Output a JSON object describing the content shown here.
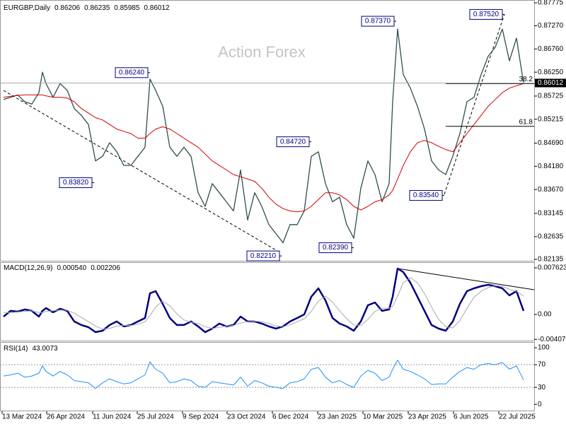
{
  "chart_data": [
    {
      "type": "line",
      "title": "EURGBP,Daily",
      "quote": [
        0.86206,
        0.86235,
        0.85985,
        0.86012
      ],
      "watermark": "Action Forex",
      "last_price": 0.86012,
      "x": [
        2.5,
        7.5,
        12.5,
        17.5,
        22.5,
        27.5,
        30,
        32.5,
        37.5,
        42.5,
        47.5,
        52.5,
        57.5,
        62.5,
        67.5,
        72.5,
        77.5,
        82.5,
        87.5,
        92.5,
        97.5,
        102.5,
        106,
        110,
        115,
        120,
        125,
        130,
        135,
        140,
        145,
        150,
        155,
        160,
        165,
        170,
        175,
        180,
        185,
        190,
        195,
        200,
        205,
        210,
        215,
        220,
        225,
        230,
        235,
        240,
        245,
        250,
        255,
        260,
        265,
        270,
        275,
        277.5,
        281,
        285,
        290,
        295,
        300,
        305,
        310,
        315,
        320,
        325,
        330,
        335,
        340,
        345,
        350,
        355,
        360,
        365,
        370
      ],
      "xlim": [
        0,
        377
      ],
      "xticks": [
        {
          "value": 1.5,
          "label": "13 Mar 2024"
        },
        {
          "value": 33,
          "label": "26 Apr 2024"
        },
        {
          "value": 65.5,
          "label": "11 Jun 2024"
        },
        {
          "value": 97,
          "label": "25 Jul 2024"
        },
        {
          "value": 129,
          "label": "9 Sep 2024"
        },
        {
          "value": 160.5,
          "label": "23 Oct 2024"
        },
        {
          "value": 192.5,
          "label": "6 Dec 2024"
        },
        {
          "value": 224.5,
          "label": "23 Jan 2025"
        },
        {
          "value": 256.5,
          "label": "10 Mar 2025"
        },
        {
          "value": 288.5,
          "label": "23 Apr 2025"
        },
        {
          "value": 320.5,
          "label": "6 Jun 2025"
        },
        {
          "value": 352.5,
          "label": "22 Jul 2025"
        }
      ],
      "ylim": [
        0.82135,
        0.87775
      ],
      "yticks": [
        0.87775,
        {
          "value": 0.8727,
          "label": "0.87270"
        },
        {
          "value": 0.8676,
          "label": "0.86760"
        },
        {
          "value": 0.8625,
          "label": "0.86250"
        },
        0.85725,
        0.85215,
        {
          "value": 0.8469,
          "label": "0.84690"
        },
        {
          "value": 0.8418,
          "label": "0.84180"
        },
        {
          "value": 0.8367,
          "label": "0.83670"
        },
        0.83145,
        0.82635,
        0.82135
      ],
      "series": [
        {
          "color": "#2f4f4f",
          "values": [
            0.8565,
            0.857,
            0.8575,
            0.856,
            0.8555,
            0.858,
            0.8625,
            0.86,
            0.857,
            0.86,
            0.8585,
            0.8545,
            0.853,
            0.851,
            0.843,
            0.844,
            0.847,
            0.845,
            0.842,
            0.842,
            0.844,
            0.846,
            0.861,
            0.8585,
            0.855,
            0.846,
            0.844,
            0.846,
            0.844,
            0.836,
            0.833,
            0.838,
            0.836,
            0.834,
            0.832,
            0.841,
            0.83,
            0.836,
            0.833,
            0.829,
            0.827,
            0.825,
            0.829,
            0.829,
            0.832,
            0.844,
            0.845,
            0.838,
            0.834,
            0.835,
            0.829,
            0.826,
            0.837,
            0.843,
            0.84,
            0.834,
            0.838,
            0.856,
            0.872,
            0.862,
            0.859,
            0.855,
            0.85,
            0.843,
            0.841,
            0.84,
            0.844,
            0.849,
            0.856,
            0.857,
            0.862,
            0.866,
            0.868,
            0.872,
            0.865,
            0.87,
            0.8601
          ]
        },
        {
          "color": "#d00000",
          "values": [
            0.857,
            0.8572,
            0.8574,
            0.8575,
            0.8575,
            0.8575,
            0.8575,
            0.8573,
            0.857,
            0.857,
            0.8568,
            0.856,
            0.8545,
            0.8535,
            0.8525,
            0.852,
            0.851,
            0.85,
            0.8495,
            0.849,
            0.848,
            0.848,
            0.849,
            0.85,
            0.8505,
            0.85,
            0.849,
            0.848,
            0.847,
            0.846,
            0.8445,
            0.843,
            0.842,
            0.841,
            0.84,
            0.8395,
            0.839,
            0.8385,
            0.837,
            0.835,
            0.8335,
            0.8325,
            0.832,
            0.8318,
            0.832,
            0.833,
            0.8345,
            0.836,
            0.836,
            0.8355,
            0.8345,
            0.833,
            0.8322,
            0.833,
            0.834,
            0.8345,
            0.8355,
            0.8365,
            0.839,
            0.842,
            0.845,
            0.847,
            0.8475,
            0.847,
            0.8462,
            0.8455,
            0.845,
            0.847,
            0.849,
            0.851,
            0.853,
            0.855,
            0.8565,
            0.858,
            0.859,
            0.8595,
            0.86
          ]
        }
      ],
      "annotations": [
        {
          "x": 106,
          "value": 0.8624,
          "label": "0.86240"
        },
        {
          "x": 66.5,
          "value": 0.8382,
          "label": "0.83820"
        },
        {
          "x": 220,
          "value": 0.8472,
          "label": "0.84720"
        },
        {
          "x": 199,
          "value": 0.8221,
          "label": "0.82210"
        },
        {
          "x": 250,
          "value": 0.8239,
          "label": "0.82390"
        },
        {
          "x": 280,
          "value": 0.8737,
          "label": "0.87370"
        },
        {
          "x": 314,
          "value": 0.8354,
          "label": "0.83540"
        },
        {
          "x": 356.5,
          "value": 0.8752,
          "label": "0.87520"
        }
      ],
      "levels": [
        {
          "value": 0.86,
          "label": "38.2"
        },
        {
          "value": 0.8506,
          "label": "61.8"
        }
      ]
    },
    {
      "type": "line",
      "title": "MACD(12,26,9)",
      "readout": [
        {
          "value": 0.00054,
          "label": "0.000540"
        },
        0.002206
      ],
      "ylim": [
        -0.00428,
        0.00843
      ],
      "yticks": [
        0.007623,
        {
          "value": 0,
          "label": "0.00"
        },
        -0.004073
      ],
      "series": [
        {
          "color": "#000080",
          "values": [
            -0.00035,
            0.00058,
            0.00046,
            0.00081,
            0.00058,
            -0.00035,
            0.00058,
            0.00104,
            0.00035,
            0.00092,
            0.00058,
            -0.00115,
            -0.00173,
            -0.00208,
            -0.00289,
            -0.00266,
            -0.00173,
            -0.00115,
            -0.00196,
            -0.00173,
            -0.00115,
            -0.00058,
            0.00346,
            0.00381,
            0.00173,
            -0.00058,
            -0.00173,
            -0.00173,
            -0.00115,
            -0.00196,
            -0.00289,
            -0.00231,
            -0.0015,
            -0.00196,
            -0.00173,
            -0.00035,
            -0.00115,
            -0.00115,
            -0.0015,
            -0.00196,
            -0.00231,
            -0.00196,
            -0.00115,
            -0.00058,
            0,
            0.00289,
            0.00427,
            0.00231,
            -0.00058,
            -0.0015,
            -0.00196,
            -0.00266,
            -0.00115,
            0.0015,
            0.00196,
            0.00058,
            0.00081,
            0.00289,
            0.00751,
            0.00693,
            0.0052,
            0.00289,
            0.00058,
            -0.00173,
            -0.00231,
            -0.00266,
            -0.00115,
            0.00173,
            0.00381,
            0.00427,
            0.00462,
            0.00485,
            0.00462,
            0.00427,
            0.00312,
            0.00381,
            0.00058
          ]
        },
        {
          "color": "#a9a9a9",
          "values": [
            0.0003,
            0.0003,
            0.0004,
            0.0005,
            0.0006,
            0.0003,
            0.0003,
            0.0005,
            0.0006,
            0.0007,
            0.0007,
            0.0002,
            -0.0005,
            -0.0012,
            -0.0019,
            -0.0024,
            -0.0023,
            -0.0019,
            -0.0018,
            -0.0018,
            -0.0016,
            -0.0012,
            -0.0002,
            0.0012,
            0.0022,
            0.0014,
            0.0001,
            -0.0009,
            -0.0013,
            -0.0015,
            -0.002,
            -0.0023,
            -0.0021,
            -0.0019,
            -0.0018,
            -0.0014,
            -0.0012,
            -0.0011,
            -0.0012,
            -0.0015,
            -0.0019,
            -0.002,
            -0.0017,
            -0.0012,
            -0.0007,
            0.0005,
            0.0022,
            0.003,
            0.002,
            0.0006,
            -0.0007,
            -0.0017,
            -0.0018,
            -0.0008,
            0.0005,
            0.001,
            0.001,
            0.0013,
            0.003,
            0.0052,
            0.006,
            0.0052,
            0.0034,
            0.0012,
            -0.0008,
            -0.002,
            -0.0022,
            -0.001,
            0.001,
            0.0028,
            0.0038,
            0.0044,
            0.0047,
            0.0046,
            0.0041,
            0.0038,
            0.003
          ]
        }
      ]
    },
    {
      "type": "line",
      "title": "RSI(14)",
      "readout": [
        43.0073
      ],
      "ylim": [
        -11,
        107.5
      ],
      "yticks": [
        100,
        70,
        30,
        0
      ],
      "levels": [
        70,
        30
      ],
      "series": [
        {
          "color": "#1e90ff",
          "values": [
            50,
            52,
            55,
            48,
            50,
            55,
            68,
            58,
            50,
            58,
            52,
            42,
            40,
            38,
            28,
            38,
            45,
            40,
            36,
            38,
            45,
            52,
            75,
            62,
            55,
            38,
            40,
            45,
            42,
            32,
            30,
            40,
            38,
            36,
            34,
            48,
            32,
            42,
            38,
            32,
            30,
            28,
            38,
            40,
            45,
            62,
            65,
            48,
            38,
            42,
            35,
            30,
            50,
            60,
            55,
            42,
            48,
            62,
            78,
            62,
            58,
            52,
            45,
            35,
            36,
            36,
            48,
            58,
            65,
            62,
            70,
            72,
            70,
            74,
            62,
            68,
            43
          ]
        }
      ]
    }
  ]
}
